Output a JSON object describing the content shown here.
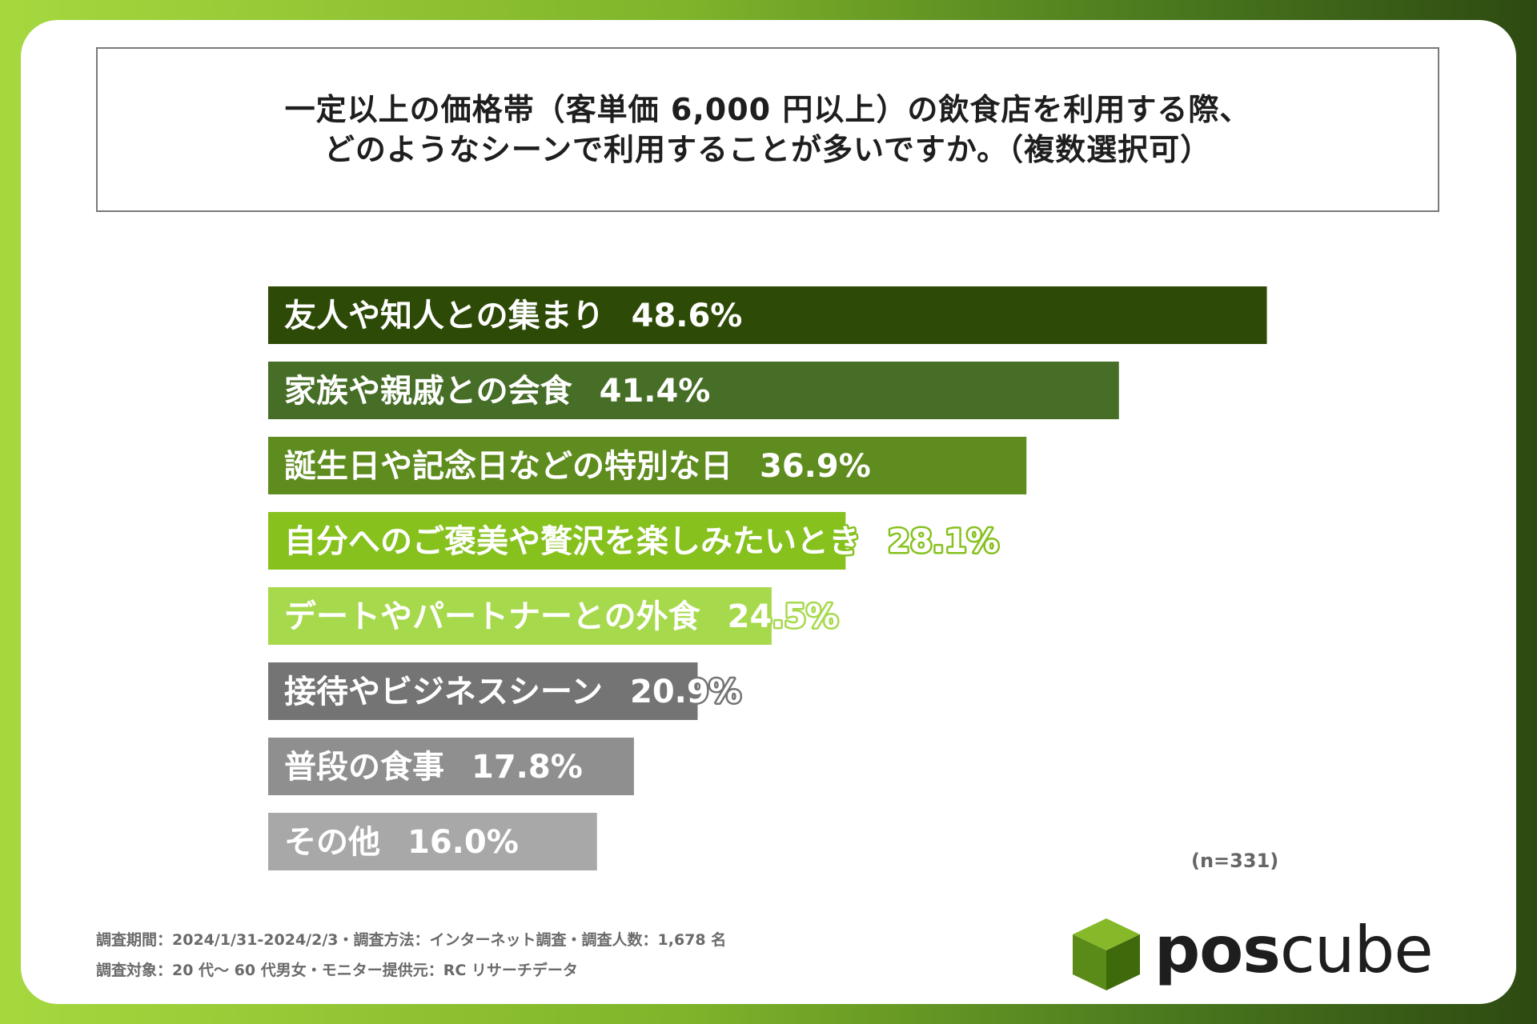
{
  "title": {
    "line1": "一定以上の価格帯（客単価 6,000 円以上）の飲食店を利用する際、",
    "line2": "どのようなシーンで利用することが多いですか。（複数選択可）"
  },
  "chart_data": {
    "type": "bar",
    "orientation": "horizontal",
    "categories": [
      "友人や知人との集まり",
      "家族や親戚との会食",
      "誕生日や記念日などの特別な日",
      "自分へのご褒美や贅沢を楽しみたいとき",
      "デートやパートナーとの外食",
      "接待やビジネスシーン",
      "普段の食事",
      "その他"
    ],
    "values": [
      48.6,
      41.4,
      36.9,
      28.1,
      24.5,
      20.9,
      17.8,
      16.0
    ],
    "value_labels": [
      "48.6%",
      "41.4%",
      "36.9%",
      "28.1%",
      "24.5%",
      "20.9%",
      "17.8%",
      "16.0%"
    ],
    "colors": [
      "#2d4a06",
      "#466e26",
      "#5e8c1e",
      "#86c11e",
      "#a7d94c",
      "#747474",
      "#8f8f8f",
      "#a8a8a8"
    ],
    "xlim": [
      0,
      50
    ],
    "title": "",
    "xlabel": "",
    "ylabel": ""
  },
  "sample": "(n=331)",
  "footer": {
    "line1": "調査期間：2024/1/31-2024/2/3・調査方法：インターネット調査・調査人数：1,678 名",
    "line2": "調査対象：20 代～ 60 代男女・モニター提供元：RC リサーチデータ"
  },
  "logo": {
    "bold": "pos",
    "light": "cube"
  }
}
